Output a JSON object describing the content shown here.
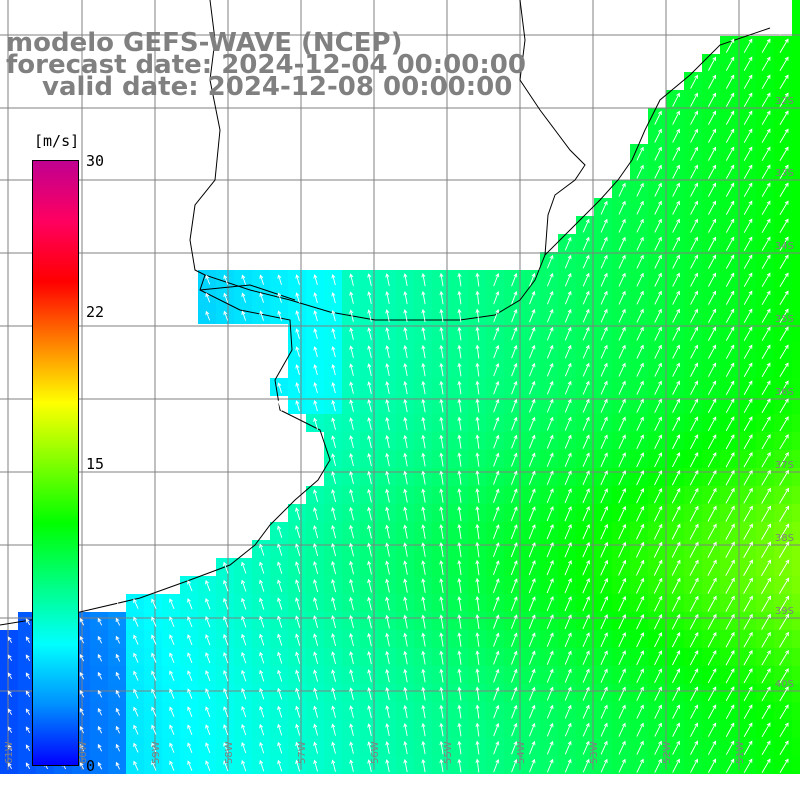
{
  "title": {
    "line1": "modelo GEFS-WAVE (NCEP)",
    "line2": "forecast date: 2024-12-04 00:00:00",
    "line3": "valid date: 2024-12-08 00:00:00"
  },
  "colorbar": {
    "unit": "[m/s]",
    "min": 0,
    "max": 30,
    "ticks": [
      "30",
      "22",
      "15",
      "0"
    ],
    "tick_values": [
      30,
      22,
      15,
      0
    ],
    "colors": [
      "#0000ff",
      "#0090ff",
      "#00ffff",
      "#00ff80",
      "#00ff00",
      "#80ff00",
      "#ffff00",
      "#ff8000",
      "#ff0000",
      "#ff0060",
      "#c00090"
    ]
  },
  "map": {
    "lat_labels": [
      "32S",
      "33S",
      "34S",
      "35S",
      "36S",
      "37S",
      "38S",
      "39S",
      "40S"
    ],
    "lon_labels": [
      "61W",
      "60W",
      "59W",
      "58W",
      "57W",
      "56W",
      "55W",
      "54W",
      "53W",
      "52W",
      "51W"
    ],
    "land_color": "#ffffff",
    "grid_color": "#808080",
    "coast_color": "#000000",
    "arrow_color": "#ffffff",
    "wind_field_description": "wind speed 3-14 m/s, stronger offshore to the east, weaker near coast and southwest"
  }
}
